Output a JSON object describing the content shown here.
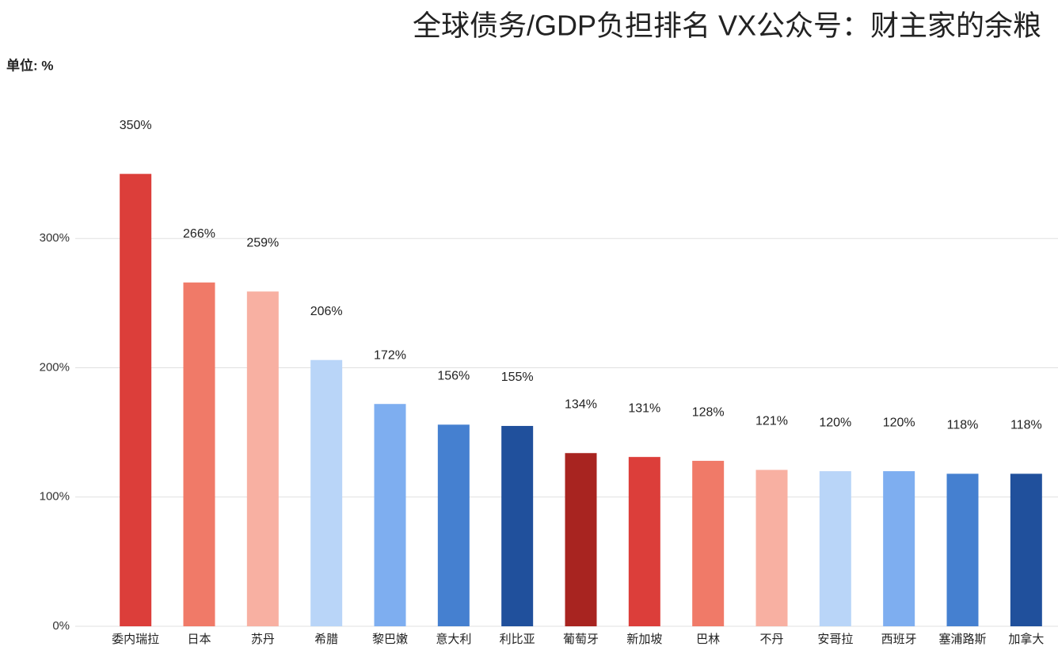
{
  "chart_data": {
    "type": "bar",
    "title": "全球债务/GDP负担排名 VX公众号：财主家的余粮",
    "unit_label": "单位: %",
    "categories": [
      "委内瑞拉",
      "日本",
      "苏丹",
      "希腊",
      "黎巴嫩",
      "意大利",
      "利比亚",
      "葡萄牙",
      "新加坡",
      "巴林",
      "不丹",
      "安哥拉",
      "西班牙",
      "塞浦路斯",
      "加拿大"
    ],
    "values": [
      350,
      266,
      259,
      206,
      172,
      156,
      155,
      134,
      131,
      128,
      121,
      120,
      120,
      118,
      118
    ],
    "value_labels": [
      "350%",
      "266%",
      "259%",
      "206%",
      "172%",
      "156%",
      "155%",
      "134%",
      "131%",
      "128%",
      "121%",
      "120%",
      "120%",
      "118%",
      "118%"
    ],
    "colors": [
      "#dc3e3a",
      "#f07a68",
      "#f8b0a2",
      "#b9d5f8",
      "#7eaef0",
      "#4580d0",
      "#20509c",
      "#a82420",
      "#dc3e3a",
      "#f07a68",
      "#f8b0a2",
      "#b9d5f8",
      "#7eaef0",
      "#4580d0",
      "#20509c"
    ],
    "ylim": [
      0,
      400
    ],
    "yticks": [
      {
        "value": 0,
        "label": "0%"
      },
      {
        "value": 100,
        "label": "100%"
      },
      {
        "value": 200,
        "label": "200%"
      },
      {
        "value": 300,
        "label": "300%"
      }
    ],
    "grid": true
  }
}
